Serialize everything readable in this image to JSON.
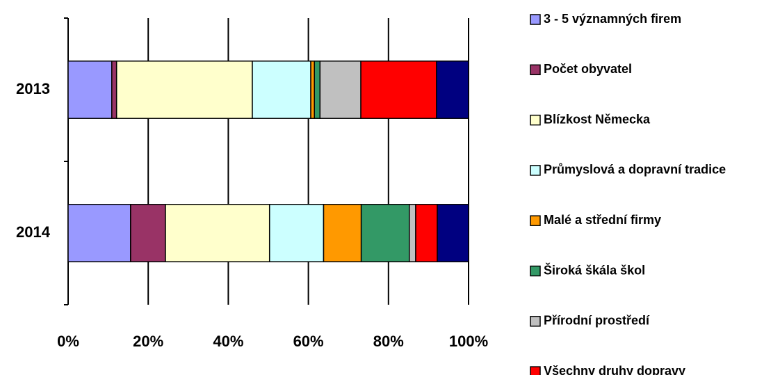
{
  "chart_data": {
    "type": "stacked_barh",
    "categories": [
      "2013",
      "2014"
    ],
    "series": [
      {
        "name": "3 - 5 významných firem",
        "color": "#9999ff",
        "values": [
          10.9,
          15.6
        ]
      },
      {
        "name": "Počet obyvatel",
        "color": "#993366",
        "values": [
          1.2,
          8.7
        ]
      },
      {
        "name": "Blízkost Německa",
        "color": "#ffffcc",
        "values": [
          33.9,
          26.0
        ]
      },
      {
        "name": "Průmyslová a dopravní tradice",
        "color": "#ccffff",
        "values": [
          14.6,
          13.5
        ]
      },
      {
        "name": "Malé a střední firmy",
        "color": "#ff9900",
        "values": [
          0.9,
          9.4
        ]
      },
      {
        "name": "Široká škála škol",
        "color": "#339966",
        "values": [
          1.4,
          12.0
        ]
      },
      {
        "name": "Přírodní prostředí",
        "color": "#c0c0c0",
        "values": [
          10.2,
          1.6
        ]
      },
      {
        "name": "Všechny druhy dopravy",
        "color": "#ff0000",
        "values": [
          18.9,
          5.4
        ]
      },
      {
        "color": "#000080",
        "values": [
          8.0,
          7.8
        ]
      }
    ],
    "xlim": [
      0,
      100
    ],
    "xticks": [
      {
        "value": 0,
        "label": "0%"
      },
      {
        "value": 20,
        "label": "20%"
      },
      {
        "value": 40,
        "label": "40%"
      },
      {
        "value": 60,
        "label": "60%"
      },
      {
        "value": 80,
        "label": "80%"
      },
      {
        "value": 100,
        "label": "100%"
      }
    ],
    "grid": true,
    "legend": "right"
  }
}
